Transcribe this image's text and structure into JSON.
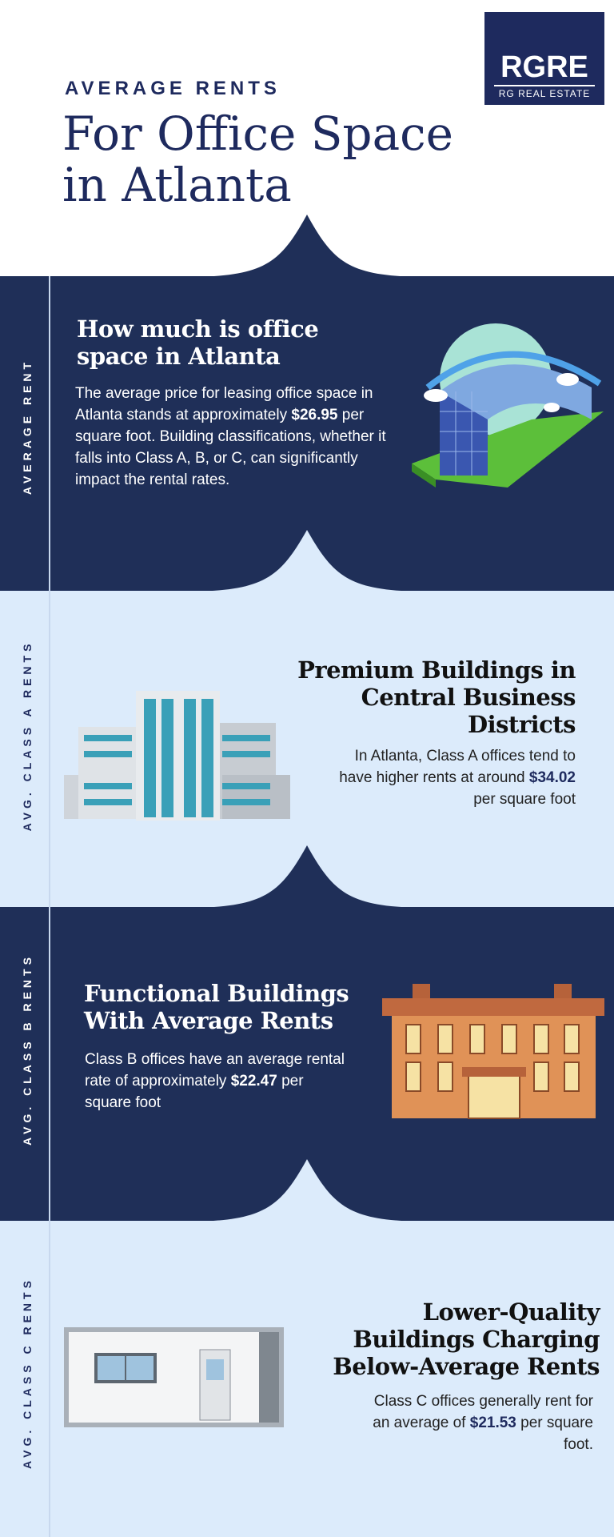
{
  "header": {
    "kicker": "AVERAGE RENTS",
    "title_line1": "For Office Space",
    "title_line2": "in Atlanta"
  },
  "logo": {
    "mark": "RGRE",
    "sub": "RG REAL ESTATE"
  },
  "colors": {
    "navy": "#1f2f58",
    "light": "#dcebfb",
    "accent": "#1e2a5e"
  },
  "sections": [
    {
      "label": "AVERAGE RENT",
      "heading_line1": "How much is office",
      "heading_line2": "space in Atlanta",
      "body_pre": "The average price for leasing office space in Atlanta stands at approximately ",
      "price": "$26.95",
      "body_post": " per square foot. Building classifications, whether it falls into Class A, B, or C, can significantly impact the rental rates.",
      "icon": "curved-glass-office-building-illustration"
    },
    {
      "label": "AVG. CLASS A RENTS",
      "heading_line1": "Premium Buildings in",
      "heading_line2": "Central Business",
      "heading_line3": "Districts",
      "body_pre": "In Atlanta, Class A offices tend to have higher rents at around ",
      "price": "$34.02",
      "body_post": " per square foot",
      "icon": "glass-highrise-building-illustration"
    },
    {
      "label": "AVG. CLASS B RENTS",
      "heading_line1": "Functional Buildings",
      "heading_line2": "With Average Rents",
      "body_pre": "Class B offices have an average rental rate of approximately ",
      "price": "$22.47",
      "body_post": " per square foot",
      "icon": "brick-building-illustration"
    },
    {
      "label": "AVG. CLASS C RENTS",
      "heading_line1": "Lower-Quality",
      "heading_line2": "Buildings Charging",
      "heading_line3": "Below-Average Rents",
      "body_pre": "Class C offices generally rent for an average of ",
      "price": "$21.53",
      "body_post": " per square foot.",
      "icon": "portable-office-container-illustration"
    }
  ]
}
